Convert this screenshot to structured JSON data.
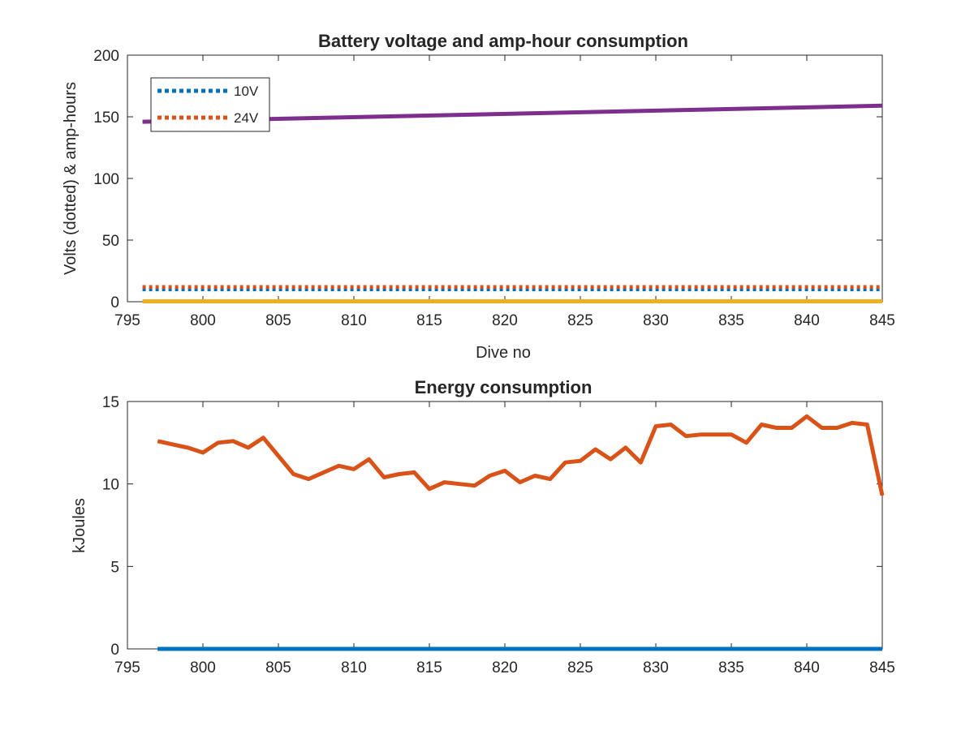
{
  "chart_data": [
    {
      "type": "line",
      "title": "Battery voltage and amp-hour consumption",
      "xlabel": "Dive no",
      "ylabel": "Volts (dotted) & amp-hours",
      "xlim": [
        795,
        845
      ],
      "ylim": [
        0,
        200
      ],
      "xticks": [
        795,
        800,
        805,
        810,
        815,
        820,
        825,
        830,
        835,
        840,
        845
      ],
      "yticks": [
        0,
        50,
        100,
        150,
        200
      ],
      "legend_position": "top-left",
      "series": [
        {
          "name": "10V",
          "style": "dotted",
          "color": "#0072BD",
          "x": [
            796,
            845
          ],
          "values": [
            10.0,
            10.0
          ]
        },
        {
          "name": "24V",
          "style": "dotted",
          "color": "#D95319",
          "x": [
            796,
            845
          ],
          "values": [
            12.0,
            12.0
          ]
        },
        {
          "style": "solid",
          "color": "#7E2F8E",
          "x": [
            796,
            845
          ],
          "values": [
            146,
            159
          ]
        },
        {
          "style": "solid",
          "color": "#EDB120",
          "x": [
            796,
            845
          ],
          "values": [
            0.3,
            0.3
          ]
        }
      ]
    },
    {
      "type": "line",
      "title": "Energy consumption",
      "xlabel": "",
      "ylabel": "kJoules",
      "xlim": [
        795,
        845
      ],
      "ylim": [
        0,
        15
      ],
      "xticks": [
        795,
        800,
        805,
        810,
        815,
        820,
        825,
        830,
        835,
        840,
        845
      ],
      "yticks": [
        0,
        5,
        10,
        15
      ],
      "series": [
        {
          "style": "solid",
          "color": "#0072BD",
          "x": [
            797,
            845
          ],
          "values": [
            0,
            0
          ]
        },
        {
          "style": "solid",
          "color": "#D95319",
          "x": [
            797,
            798,
            799,
            800,
            801,
            802,
            803,
            804,
            805,
            806,
            807,
            808,
            809,
            810,
            811,
            812,
            813,
            814,
            815,
            816,
            817,
            818,
            819,
            820,
            821,
            822,
            823,
            824,
            825,
            826,
            827,
            828,
            829,
            830,
            831,
            832,
            833,
            834,
            835,
            836,
            837,
            838,
            839,
            840,
            841,
            842,
            843,
            844,
            845
          ],
          "values": [
            12.6,
            12.4,
            12.2,
            11.9,
            12.5,
            12.6,
            12.2,
            12.8,
            11.7,
            10.6,
            10.3,
            10.7,
            11.1,
            10.9,
            11.5,
            10.4,
            10.6,
            10.7,
            9.7,
            10.1,
            10.0,
            9.9,
            10.5,
            10.8,
            10.1,
            10.5,
            10.3,
            11.3,
            11.4,
            12.1,
            11.5,
            12.2,
            11.3,
            13.5,
            13.6,
            12.9,
            13.0,
            13.0,
            13.0,
            12.5,
            13.6,
            13.4,
            13.4,
            14.1,
            13.4,
            13.4,
            13.7,
            13.6,
            9.3
          ]
        }
      ]
    }
  ]
}
